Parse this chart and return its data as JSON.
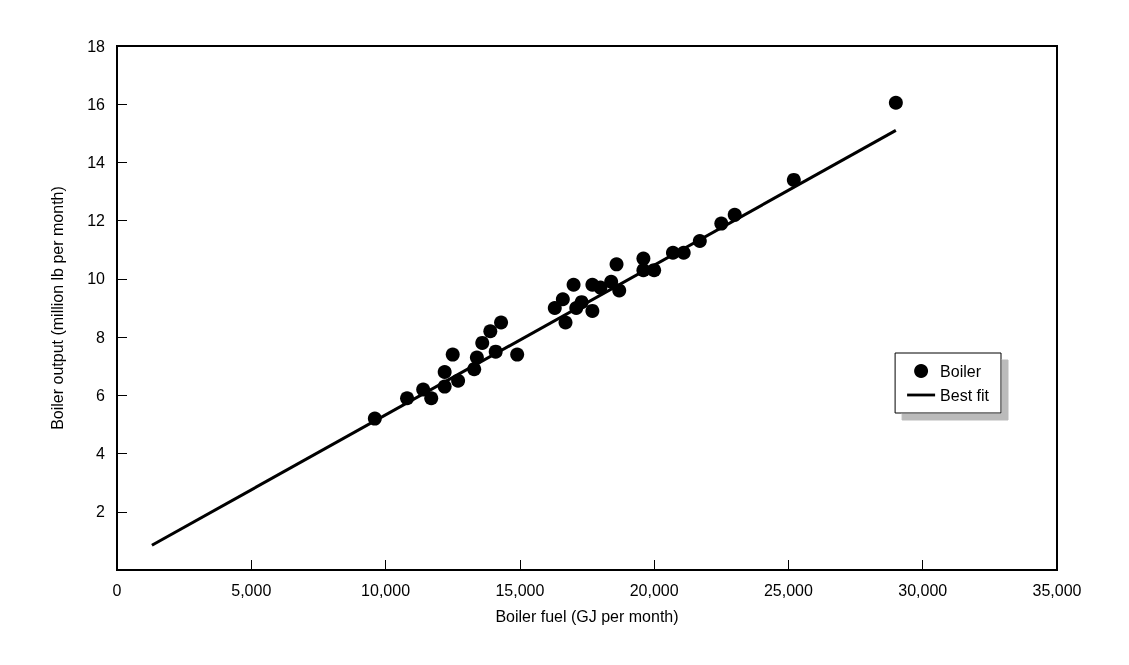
{
  "chart_data": {
    "type": "scatter",
    "xlabel": "Boiler fuel (GJ per month)",
    "ylabel": "Boiler output (million lb per month)",
    "xlim": [
      0,
      35000
    ],
    "xticks": [
      0,
      {
        "value": 5000,
        "label": "5,000"
      },
      {
        "value": 10000,
        "label": "10,000"
      },
      {
        "value": 15000,
        "label": "15,000"
      },
      {
        "value": 20000,
        "label": "20,000"
      },
      {
        "value": 25000,
        "label": "25,000"
      },
      {
        "value": 30000,
        "label": "30,000"
      },
      {
        "value": 35000,
        "label": "35,000"
      }
    ],
    "ylim": [
      0,
      18
    ],
    "yticks": [
      2,
      4,
      6,
      8,
      10,
      12,
      14,
      16,
      18
    ],
    "grid": false,
    "legend": "right",
    "marker": "circle",
    "series": [
      {
        "name": "Boiler",
        "color": "#000000",
        "x": [
          9600,
          10800,
          11400,
          11700,
          12200,
          12200,
          12500,
          12700,
          13300,
          13400,
          13600,
          13900,
          14100,
          14300,
          14900,
          16300,
          16600,
          16700,
          17000,
          17100,
          17300,
          17700,
          17700,
          18000,
          18600,
          18400,
          18700,
          19600,
          19600,
          20000,
          20700,
          21100,
          21700,
          22500,
          23000,
          25200,
          29000
        ],
        "values": [
          5.2,
          5.9,
          6.2,
          5.9,
          6.8,
          6.3,
          7.4,
          6.5,
          6.9,
          7.3,
          7.8,
          8.2,
          7.5,
          8.5,
          7.4,
          9.0,
          9.3,
          8.5,
          9.8,
          9.0,
          9.2,
          9.8,
          8.9,
          9.7,
          10.5,
          9.9,
          9.6,
          10.7,
          10.3,
          10.3,
          10.9,
          10.9,
          11.3,
          11.9,
          12.2,
          13.4,
          16.05
        ]
      },
      {
        "name": "Best fit",
        "type": "line",
        "color": "#000000",
        "marker": "none",
        "line_style": "solid",
        "x": [
          1300,
          29000
        ],
        "values": [
          0.85,
          15.1
        ]
      }
    ]
  }
}
